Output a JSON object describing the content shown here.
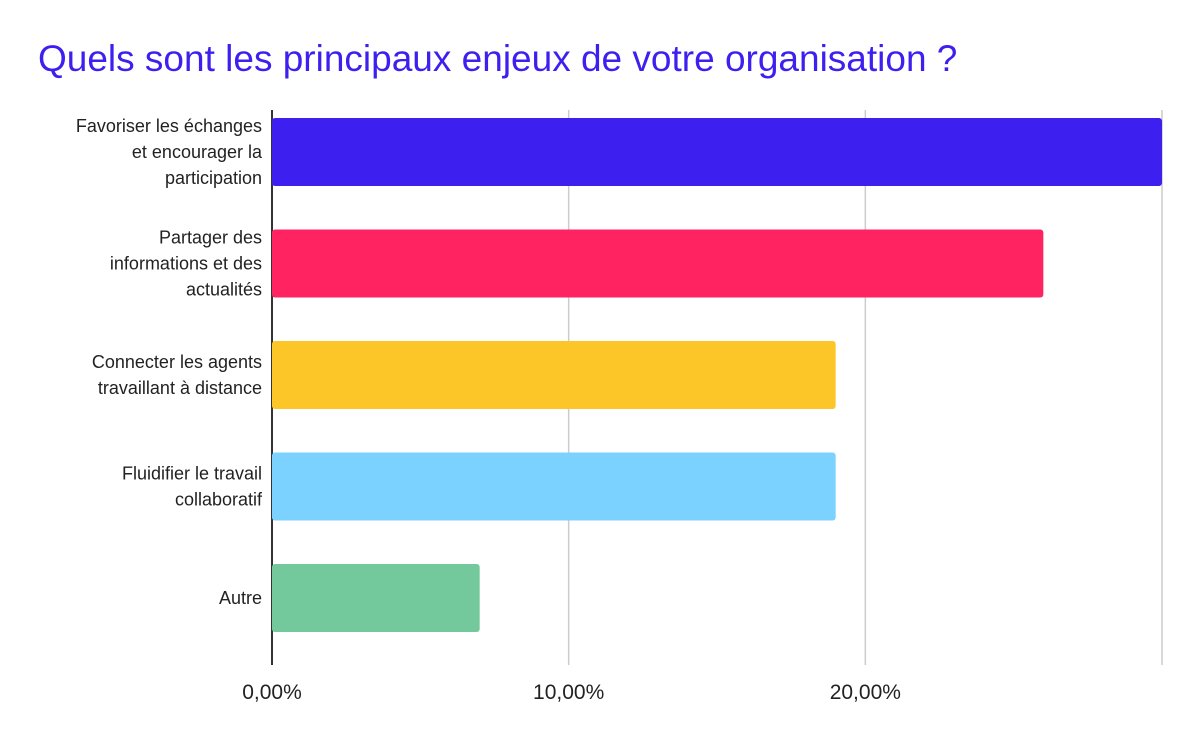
{
  "chart_data": {
    "type": "bar",
    "orientation": "horizontal",
    "title": "Quels sont les principaux enjeux de votre organisation ?",
    "title_color": "#3d1ff0",
    "categories": [
      [
        "Favoriser les échanges",
        "et encourager la",
        "participation"
      ],
      [
        "Partager des",
        "informations et des",
        "actualités"
      ],
      [
        "Connecter les agents",
        "travaillant à distance"
      ],
      [
        "Fluidifier le travail",
        "collaboratif"
      ],
      [
        "Autre"
      ]
    ],
    "values": [
      0.3,
      0.26,
      0.19,
      0.19,
      0.07
    ],
    "bar_colors": [
      "#3d1ff0",
      "#ff2461",
      "#fdc628",
      "#7bd2ff",
      "#73c99b"
    ],
    "xlim": [
      0,
      0.3
    ],
    "xticks": [
      0,
      0.1,
      0.2,
      0.3
    ],
    "xtick_labels": [
      "0,00%",
      "10,00%",
      "20,00%",
      ""
    ],
    "grid": true,
    "legend": "none",
    "xlabel": "",
    "ylabel": ""
  }
}
